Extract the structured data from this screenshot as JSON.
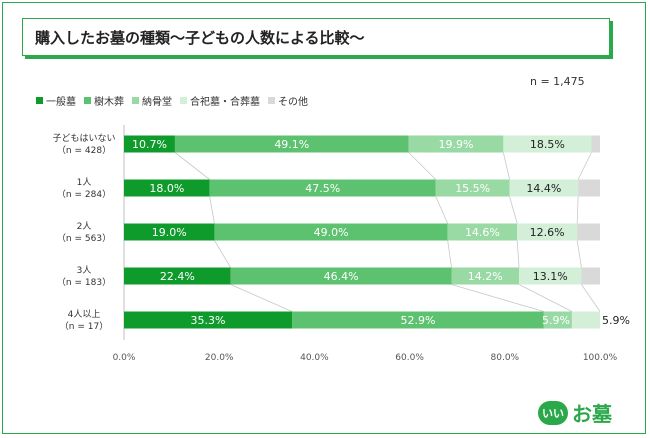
{
  "title": "購入したお墓の種類〜子どもの人数による比較〜",
  "sample_label": "n = 1,475",
  "logo": {
    "badge": "いい",
    "text": "お墓"
  },
  "chart_data": {
    "type": "bar",
    "orientation": "horizontal",
    "stacked": "percent",
    "title": "購入したお墓の種類〜子どもの人数による比較〜",
    "categories": [
      [
        "子どもはいない",
        "（n = 428）"
      ],
      [
        "1人",
        "（n = 284）"
      ],
      [
        "2人",
        "（n = 563）"
      ],
      [
        "3人",
        "（n = 183）"
      ],
      [
        "4人以上",
        "（n = 17）"
      ]
    ],
    "series": [
      {
        "name": "一般墓",
        "color": "#0f9b2c",
        "values": [
          10.7,
          18.0,
          19.0,
          22.4,
          35.3
        ]
      },
      {
        "name": "樹木葬",
        "color": "#5cc26f",
        "values": [
          49.1,
          47.5,
          49.0,
          46.4,
          52.9
        ]
      },
      {
        "name": "納骨堂",
        "color": "#98d9a4",
        "values": [
          19.9,
          15.5,
          14.6,
          14.2,
          5.9
        ]
      },
      {
        "name": "合祀墓・合葬墓",
        "color": "#d3efd8",
        "values": [
          18.5,
          14.4,
          12.6,
          13.1,
          5.9
        ]
      },
      {
        "name": "その他",
        "color": "#d9d9d9",
        "values": [
          1.8,
          4.6,
          4.8,
          3.9,
          0.0
        ]
      }
    ],
    "label_colors": [
      "#ffffff",
      "#ffffff",
      "#ffffff",
      "#222222",
      "#222222"
    ],
    "xlim": [
      0,
      100
    ],
    "xticks": [
      "0.0%",
      "20.0%",
      "40.0%",
      "60.0%",
      "80.0%",
      "100.0%"
    ],
    "grid": false,
    "legend_position": "top-left"
  }
}
